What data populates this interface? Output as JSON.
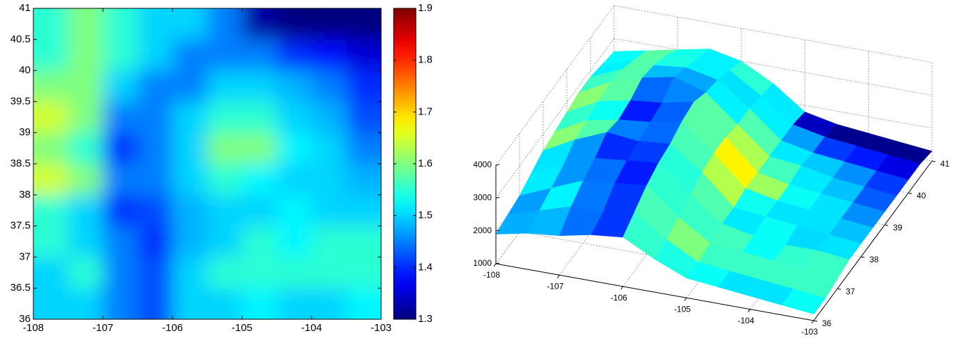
{
  "chart_data": [
    {
      "type": "heatmap",
      "xlim": [
        -108,
        -103
      ],
      "xticks": [
        -108,
        -107,
        -106,
        -105,
        -104,
        -103
      ],
      "ylim": [
        36,
        41
      ],
      "yticks": [
        36,
        36.5,
        37,
        37.5,
        38,
        38.5,
        39,
        39.5,
        40,
        40.5,
        41
      ],
      "clim": [
        1.3,
        1.9
      ],
      "cticks": [
        1.3,
        1.4,
        1.5,
        1.6,
        1.7,
        1.8,
        1.9
      ],
      "colormap": "jet",
      "values": [
        [
          1.55,
          1.6,
          1.55,
          1.5,
          1.5,
          1.45,
          1.32,
          1.3,
          1.3,
          1.3
        ],
        [
          1.55,
          1.6,
          1.55,
          1.5,
          1.45,
          1.45,
          1.45,
          1.4,
          1.38,
          1.35
        ],
        [
          1.6,
          1.6,
          1.5,
          1.45,
          1.45,
          1.5,
          1.5,
          1.48,
          1.45,
          1.4
        ],
        [
          1.65,
          1.6,
          1.45,
          1.45,
          1.5,
          1.55,
          1.55,
          1.5,
          1.48,
          1.42
        ],
        [
          1.6,
          1.55,
          1.4,
          1.45,
          1.5,
          1.6,
          1.6,
          1.52,
          1.5,
          1.45
        ],
        [
          1.65,
          1.6,
          1.45,
          1.45,
          1.5,
          1.55,
          1.52,
          1.5,
          1.5,
          1.48
        ],
        [
          1.55,
          1.5,
          1.4,
          1.42,
          1.48,
          1.5,
          1.5,
          1.52,
          1.5,
          1.5
        ],
        [
          1.55,
          1.5,
          1.45,
          1.4,
          1.48,
          1.5,
          1.55,
          1.52,
          1.55,
          1.55
        ],
        [
          1.5,
          1.55,
          1.45,
          1.42,
          1.5,
          1.55,
          1.55,
          1.55,
          1.55,
          1.55
        ],
        [
          1.5,
          1.5,
          1.45,
          1.42,
          1.5,
          1.5,
          1.52,
          1.5,
          1.5,
          1.52
        ]
      ]
    },
    {
      "type": "surface",
      "xlim": [
        -108,
        -103
      ],
      "xticks": [
        -108,
        -107,
        -106,
        -105,
        -104,
        -103
      ],
      "ylim": [
        36,
        41
      ],
      "yticks": [
        36,
        37,
        38,
        39,
        40,
        41
      ],
      "zlim": [
        1000,
        4000
      ],
      "zticks": [
        1000,
        2000,
        3000,
        4000
      ],
      "grid": true,
      "heights": [
        [
          2600,
          2800,
          3000,
          3200,
          3000,
          2500,
          1800,
          1600,
          1500,
          1400,
          1300
        ],
        [
          2700,
          3000,
          3300,
          3400,
          3200,
          2600,
          1900,
          1700,
          1600,
          1500,
          1400
        ],
        [
          2800,
          3200,
          3500,
          3600,
          3400,
          2700,
          1900,
          1700,
          1600,
          1500,
          1400
        ],
        [
          2800,
          3300,
          3600,
          3800,
          3500,
          2700,
          1900,
          1800,
          1600,
          1500,
          1400
        ],
        [
          2700,
          3200,
          3400,
          3500,
          3700,
          2800,
          1900,
          1700,
          1600,
          1500,
          1400
        ],
        [
          2600,
          3100,
          3300,
          3400,
          3600,
          2800,
          1900,
          1700,
          1600,
          1500,
          1400
        ],
        [
          2500,
          3000,
          3400,
          3300,
          3400,
          2700,
          1800,
          1700,
          1600,
          1500,
          1400
        ],
        [
          2300,
          2700,
          3100,
          3200,
          3300,
          2500,
          1800,
          1600,
          1500,
          1500,
          1400
        ],
        [
          2100,
          2500,
          2900,
          3000,
          3100,
          2300,
          1700,
          1600,
          1500,
          1400,
          1300
        ],
        [
          2000,
          2300,
          2600,
          2600,
          2800,
          2100,
          1600,
          1500,
          1400,
          1300,
          1200
        ],
        [
          1900,
          2100,
          2200,
          2400,
          2500,
          2000,
          1600,
          1500,
          1400,
          1300,
          1200
        ]
      ]
    }
  ]
}
